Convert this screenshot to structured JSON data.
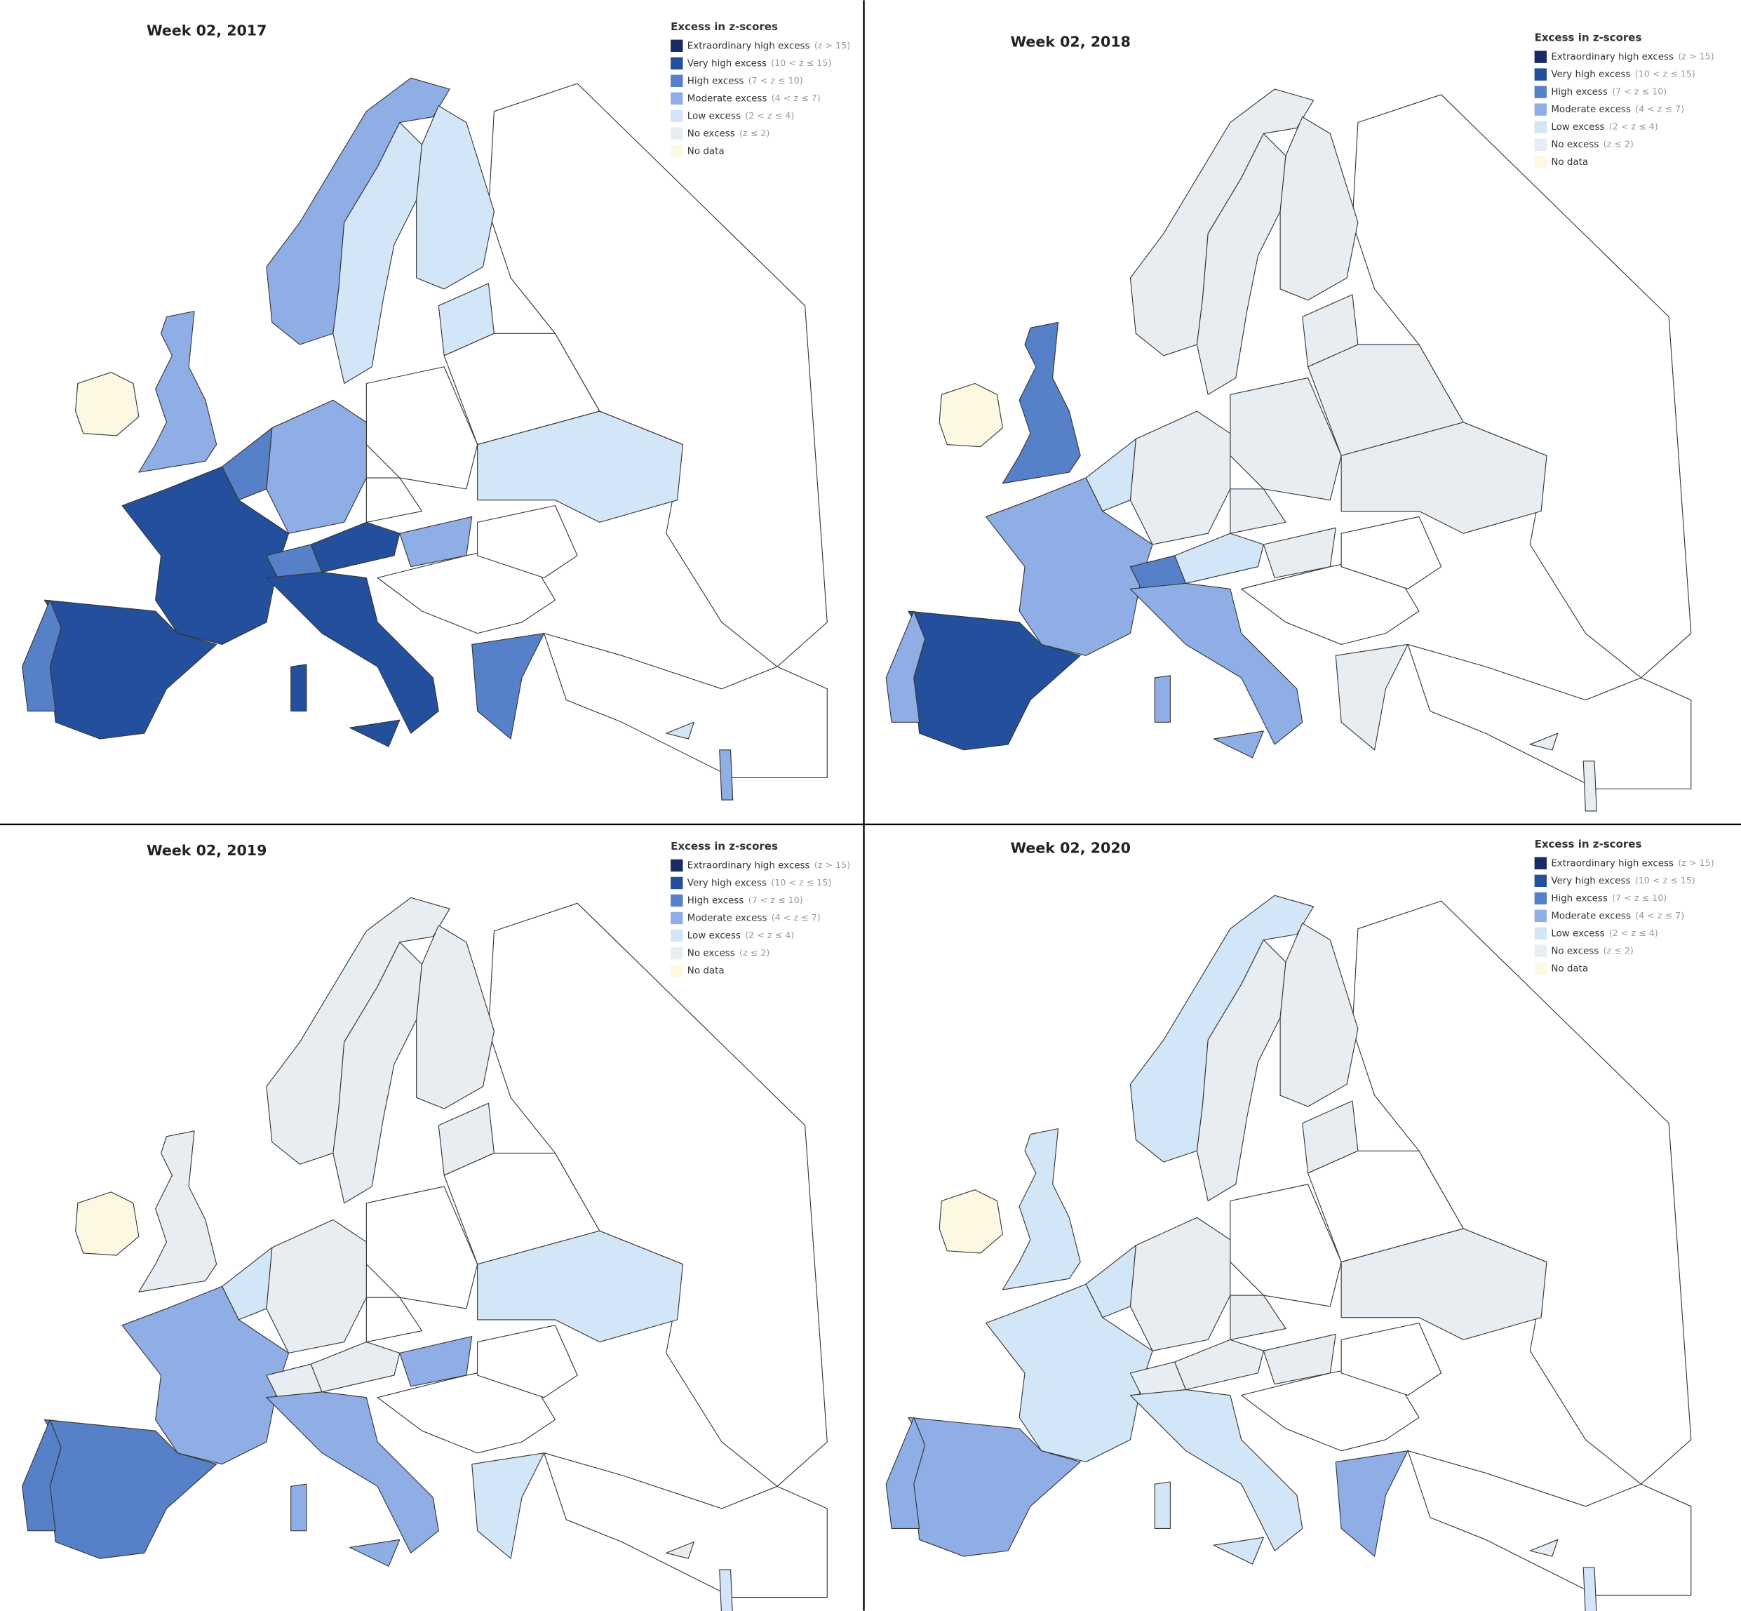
{
  "panels": [
    {
      "title": "Week 02, 2017"
    },
    {
      "title": "Week 02, 2018"
    },
    {
      "title": "Week 02, 2019"
    },
    {
      "title": "Week 02, 2020"
    }
  ],
  "legend": {
    "title": "Excess in z-scores",
    "items": [
      {
        "label": "Extraordinary high excess",
        "range": "(z > 15)",
        "color": "#1a2b63"
      },
      {
        "label": "Very high excess",
        "range": "(10 < z ≤ 15)",
        "color": "#234f9c"
      },
      {
        "label": "High excess",
        "range": "(7 < z ≤ 10)",
        "color": "#5680c8"
      },
      {
        "label": "Moderate excess",
        "range": "(4 < z ≤ 7)",
        "color": "#8faee5"
      },
      {
        "label": "Low excess",
        "range": "(2 < z ≤ 4)",
        "color": "#d3e6f7"
      },
      {
        "label": "No excess",
        "range": "(z ≤ 2)",
        "color": "#e8edf2"
      },
      {
        "label": "No data",
        "color": "#fdf8e2"
      }
    ]
  }
}
